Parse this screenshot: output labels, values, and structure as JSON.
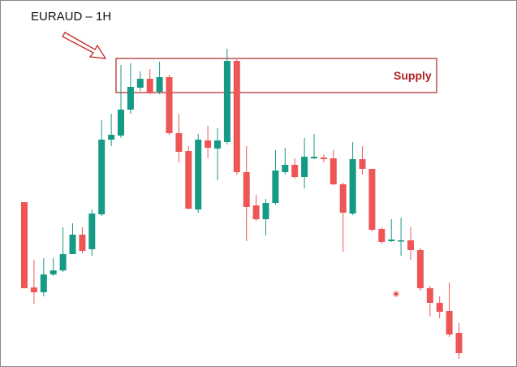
{
  "chart_data": {
    "type": "candlestick",
    "title": "EURAUD – 1H",
    "up_color": "#159a86",
    "down_color": "#ee5656",
    "ylim": [
      0,
      452
    ],
    "open": [
      203,
      98,
      92,
      114,
      119,
      139,
      163,
      145,
      188,
      280,
      285,
      317,
      344,
      355,
      339,
      357,
      288,
      266,
      194,
      279,
      269,
      277,
      377,
      240,
      199,
      182,
      202,
      240,
      249,
      234,
      257,
      258,
      257,
      225,
      189,
      256,
      244,
      170,
      155,
      155,
      156,
      144,
      97,
      79,
      69,
      42
    ],
    "high": [
      203,
      132,
      134,
      134,
      172,
      177,
      172,
      194,
      304,
      312,
      372,
      374,
      364,
      367,
      376,
      360,
      312,
      272,
      287,
      297,
      294,
      392,
      379,
      272,
      212,
      207,
      267,
      270,
      257,
      282,
      287,
      262,
      267,
      227,
      277,
      272,
      244,
      172,
      182,
      184,
      172,
      147,
      100,
      87,
      104,
      54
    ],
    "low": [
      97,
      78,
      87,
      112,
      117,
      139,
      140,
      137,
      186,
      272,
      282,
      312,
      340,
      336,
      336,
      286,
      252,
      194,
      190,
      257,
      230,
      274,
      237,
      155,
      180,
      162,
      200,
      237,
      232,
      220,
      256,
      252,
      224,
      142,
      187,
      237,
      167,
      152,
      154,
      137,
      132,
      94,
      62,
      60,
      37,
      10
    ],
    "close": [
      97,
      92,
      114,
      119,
      139,
      163,
      143,
      189,
      280,
      286,
      317,
      345,
      355,
      338,
      357,
      288,
      265,
      195,
      280,
      270,
      279,
      377,
      240,
      197,
      182,
      202,
      242,
      249,
      234,
      259,
      259,
      256,
      225,
      190,
      256,
      244,
      169,
      154,
      157,
      156,
      144,
      97,
      79,
      68,
      40,
      17
    ],
    "zone": {
      "label": "Supply",
      "range": [
        338,
        380
      ],
      "color": "#b22222"
    }
  }
}
